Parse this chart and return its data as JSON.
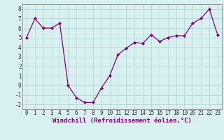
{
  "x": [
    0,
    1,
    2,
    3,
    4,
    5,
    6,
    7,
    8,
    9,
    10,
    11,
    12,
    13,
    14,
    15,
    16,
    17,
    18,
    19,
    20,
    21,
    22,
    23
  ],
  "y": [
    5.0,
    7.0,
    6.0,
    6.0,
    6.5,
    0.0,
    -1.3,
    -1.8,
    -1.8,
    -0.3,
    1.0,
    3.2,
    3.9,
    4.5,
    4.4,
    5.3,
    4.6,
    5.0,
    5.2,
    5.2,
    6.5,
    7.0,
    8.0,
    5.3
  ],
  "line_color": "#800080",
  "marker": "D",
  "markersize": 2,
  "bg_color": "#d8f0f0",
  "grid_color": "#b8dada",
  "xlabel": "Windchill (Refroidissement éolien,°C)",
  "xlim": [
    -0.5,
    23.5
  ],
  "ylim": [
    -2.5,
    8.5
  ],
  "yticks": [
    -2,
    -1,
    0,
    1,
    2,
    3,
    4,
    5,
    6,
    7,
    8
  ],
  "xticks": [
    0,
    1,
    2,
    3,
    4,
    5,
    6,
    7,
    8,
    9,
    10,
    11,
    12,
    13,
    14,
    15,
    16,
    17,
    18,
    19,
    20,
    21,
    22,
    23
  ],
  "tick_fontsize": 5.5,
  "xlabel_fontsize": 6.5
}
